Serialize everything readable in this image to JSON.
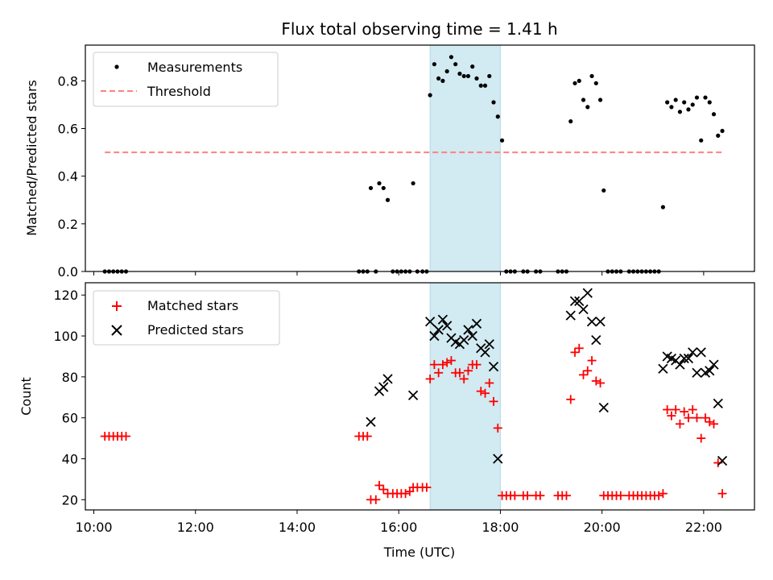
{
  "chart_data": [
    {
      "type": "scatter",
      "title": "Flux total observing time = 1.41 h",
      "xlabel": "",
      "ylabel": "Matched/Predicted stars",
      "xlim": [
        "09:50",
        "23:00"
      ],
      "ylim": [
        0,
        0.95
      ],
      "yticks": [
        "0.0",
        "0.2",
        "0.4",
        "0.6",
        "0.8"
      ],
      "legend_position": "top-left",
      "highlight_span": [
        "16:37",
        "18:00"
      ],
      "series": [
        {
          "name": "Measurements",
          "marker": "dot",
          "color": "#000000",
          "points": [
            [
              "10:13",
              0
            ],
            [
              "10:18",
              0
            ],
            [
              "10:23",
              0
            ],
            [
              "10:28",
              0
            ],
            [
              "10:33",
              0
            ],
            [
              "10:38",
              0
            ],
            [
              "15:13",
              0
            ],
            [
              "15:18",
              0
            ],
            [
              "15:23",
              0
            ],
            [
              "15:27",
              0.35
            ],
            [
              "15:33",
              0
            ],
            [
              "15:37",
              0.37
            ],
            [
              "15:42",
              0.35
            ],
            [
              "15:47",
              0.3
            ],
            [
              "15:53",
              0
            ],
            [
              "15:58",
              0
            ],
            [
              "16:03",
              0
            ],
            [
              "16:08",
              0
            ],
            [
              "16:13",
              0
            ],
            [
              "16:17",
              0.37
            ],
            [
              "16:22",
              0
            ],
            [
              "16:28",
              0
            ],
            [
              "16:33",
              0
            ],
            [
              "16:37",
              0.74
            ],
            [
              "16:42",
              0.87
            ],
            [
              "16:47",
              0.81
            ],
            [
              "16:52",
              0.8
            ],
            [
              "16:57",
              0.84
            ],
            [
              "17:02",
              0.9
            ],
            [
              "17:07",
              0.87
            ],
            [
              "17:12",
              0.83
            ],
            [
              "17:17",
              0.82
            ],
            [
              "17:22",
              0.82
            ],
            [
              "17:27",
              0.86
            ],
            [
              "17:32",
              0.81
            ],
            [
              "17:37",
              0.78
            ],
            [
              "17:42",
              0.78
            ],
            [
              "17:47",
              0.82
            ],
            [
              "17:52",
              0.71
            ],
            [
              "17:57",
              0.65
            ],
            [
              "18:02",
              0.55
            ],
            [
              "18:07",
              0
            ],
            [
              "18:12",
              0
            ],
            [
              "18:17",
              0
            ],
            [
              "18:27",
              0
            ],
            [
              "18:32",
              0
            ],
            [
              "18:42",
              0
            ],
            [
              "18:47",
              0
            ],
            [
              "19:08",
              0
            ],
            [
              "19:13",
              0
            ],
            [
              "19:18",
              0
            ],
            [
              "19:23",
              0.63
            ],
            [
              "19:28",
              0.79
            ],
            [
              "19:33",
              0.8
            ],
            [
              "19:38",
              0.72
            ],
            [
              "19:43",
              0.69
            ],
            [
              "19:48",
              0.82
            ],
            [
              "19:53",
              0.79
            ],
            [
              "19:58",
              0.72
            ],
            [
              "20:02",
              0.34
            ],
            [
              "20:07",
              0
            ],
            [
              "20:12",
              0
            ],
            [
              "20:17",
              0
            ],
            [
              "20:22",
              0
            ],
            [
              "20:32",
              0
            ],
            [
              "20:37",
              0
            ],
            [
              "20:42",
              0
            ],
            [
              "20:47",
              0
            ],
            [
              "20:52",
              0
            ],
            [
              "20:57",
              0
            ],
            [
              "21:02",
              0
            ],
            [
              "21:07",
              0
            ],
            [
              "21:12",
              0.27
            ],
            [
              "21:17",
              0.71
            ],
            [
              "21:22",
              0.69
            ],
            [
              "21:27",
              0.72
            ],
            [
              "21:32",
              0.67
            ],
            [
              "21:37",
              0.71
            ],
            [
              "21:42",
              0.68
            ],
            [
              "21:47",
              0.7
            ],
            [
              "21:52",
              0.73
            ],
            [
              "21:57",
              0.55
            ],
            [
              "22:02",
              0.73
            ],
            [
              "22:07",
              0.71
            ],
            [
              "22:12",
              0.66
            ],
            [
              "22:17",
              0.57
            ],
            [
              "22:22",
              0.59
            ]
          ]
        },
        {
          "name": "Threshold",
          "marker": "dashed-line",
          "color": "#ff8080",
          "points": [
            [
              "10:13",
              0.5
            ],
            [
              "22:22",
              0.5
            ]
          ]
        }
      ]
    },
    {
      "type": "scatter",
      "title": "",
      "xlabel": "Time (UTC)",
      "ylabel": "Count",
      "xlim": [
        "09:50",
        "23:00"
      ],
      "ylim": [
        15,
        126
      ],
      "yticks": [
        "20",
        "40",
        "60",
        "80",
        "100",
        "120"
      ],
      "xticks": [
        "10:00",
        "12:00",
        "14:00",
        "16:00",
        "18:00",
        "20:00",
        "22:00"
      ],
      "legend_position": "top-left",
      "highlight_span": [
        "16:37",
        "18:00"
      ],
      "series": [
        {
          "name": "Matched stars",
          "marker": "plus",
          "color": "#ff0000",
          "points": [
            [
              "10:13",
              51
            ],
            [
              "10:18",
              51
            ],
            [
              "10:23",
              51
            ],
            [
              "10:28",
              51
            ],
            [
              "10:33",
              51
            ],
            [
              "10:38",
              51
            ],
            [
              "15:13",
              51
            ],
            [
              "15:18",
              51
            ],
            [
              "15:23",
              51
            ],
            [
              "15:27",
              20
            ],
            [
              "15:33",
              20
            ],
            [
              "15:37",
              27
            ],
            [
              "15:42",
              25
            ],
            [
              "15:47",
              23
            ],
            [
              "15:53",
              23
            ],
            [
              "15:58",
              23
            ],
            [
              "16:03",
              23
            ],
            [
              "16:08",
              23
            ],
            [
              "16:13",
              24
            ],
            [
              "16:17",
              26
            ],
            [
              "16:22",
              26
            ],
            [
              "16:28",
              26
            ],
            [
              "16:33",
              26
            ],
            [
              "16:37",
              79
            ],
            [
              "16:42",
              86
            ],
            [
              "16:47",
              82
            ],
            [
              "16:52",
              86
            ],
            [
              "16:57",
              87
            ],
            [
              "17:02",
              88
            ],
            [
              "17:07",
              82
            ],
            [
              "17:12",
              82
            ],
            [
              "17:17",
              79
            ],
            [
              "17:22",
              83
            ],
            [
              "17:27",
              86
            ],
            [
              "17:32",
              86
            ],
            [
              "17:37",
              73
            ],
            [
              "17:42",
              72
            ],
            [
              "17:47",
              77
            ],
            [
              "17:52",
              68
            ],
            [
              "17:57",
              55
            ],
            [
              "18:02",
              22
            ],
            [
              "18:07",
              22
            ],
            [
              "18:12",
              22
            ],
            [
              "18:17",
              22
            ],
            [
              "18:27",
              22
            ],
            [
              "18:32",
              22
            ],
            [
              "18:42",
              22
            ],
            [
              "18:47",
              22
            ],
            [
              "19:08",
              22
            ],
            [
              "19:13",
              22
            ],
            [
              "19:18",
              22
            ],
            [
              "19:23",
              69
            ],
            [
              "19:28",
              92
            ],
            [
              "19:33",
              94
            ],
            [
              "19:38",
              81
            ],
            [
              "19:43",
              83
            ],
            [
              "19:48",
              88
            ],
            [
              "19:53",
              78
            ],
            [
              "19:58",
              77
            ],
            [
              "20:02",
              22
            ],
            [
              "20:07",
              22
            ],
            [
              "20:12",
              22
            ],
            [
              "20:17",
              22
            ],
            [
              "20:22",
              22
            ],
            [
              "20:32",
              22
            ],
            [
              "20:37",
              22
            ],
            [
              "20:42",
              22
            ],
            [
              "20:47",
              22
            ],
            [
              "20:52",
              22
            ],
            [
              "20:57",
              22
            ],
            [
              "21:02",
              22
            ],
            [
              "21:07",
              22
            ],
            [
              "21:12",
              23
            ],
            [
              "21:17",
              64
            ],
            [
              "21:22",
              61
            ],
            [
              "21:27",
              64
            ],
            [
              "21:32",
              57
            ],
            [
              "21:37",
              63
            ],
            [
              "21:42",
              60
            ],
            [
              "21:47",
              64
            ],
            [
              "21:52",
              60
            ],
            [
              "21:57",
              50
            ],
            [
              "22:02",
              60
            ],
            [
              "22:07",
              58
            ],
            [
              "22:12",
              57
            ],
            [
              "22:17",
              38
            ],
            [
              "22:22",
              23
            ]
          ]
        },
        {
          "name": "Predicted stars",
          "marker": "x",
          "color": "#000000",
          "points": [
            [
              "15:27",
              58
            ],
            [
              "15:37",
              73
            ],
            [
              "15:42",
              75
            ],
            [
              "15:47",
              79
            ],
            [
              "16:17",
              71
            ],
            [
              "16:37",
              107
            ],
            [
              "16:42",
              100
            ],
            [
              "16:47",
              103
            ],
            [
              "16:52",
              108
            ],
            [
              "16:57",
              105
            ],
            [
              "17:02",
              99
            ],
            [
              "17:07",
              97
            ],
            [
              "17:12",
              96
            ],
            [
              "17:17",
              98
            ],
            [
              "17:22",
              103
            ],
            [
              "17:27",
              100
            ],
            [
              "17:32",
              106
            ],
            [
              "17:37",
              94
            ],
            [
              "17:42",
              92
            ],
            [
              "17:47",
              96
            ],
            [
              "17:52",
              85
            ],
            [
              "17:57",
              40
            ],
            [
              "19:23",
              110
            ],
            [
              "19:28",
              117
            ],
            [
              "19:33",
              117
            ],
            [
              "19:38",
              113
            ],
            [
              "19:43",
              121
            ],
            [
              "19:48",
              107
            ],
            [
              "19:53",
              98
            ],
            [
              "19:58",
              107
            ],
            [
              "20:02",
              65
            ],
            [
              "21:12",
              84
            ],
            [
              "21:17",
              90
            ],
            [
              "21:22",
              89
            ],
            [
              "21:27",
              88
            ],
            [
              "21:32",
              86
            ],
            [
              "21:37",
              89
            ],
            [
              "21:42",
              89
            ],
            [
              "21:47",
              92
            ],
            [
              "21:52",
              82
            ],
            [
              "21:57",
              92
            ],
            [
              "22:02",
              82
            ],
            [
              "22:07",
              83
            ],
            [
              "22:12",
              86
            ],
            [
              "22:17",
              67
            ],
            [
              "22:22",
              39
            ]
          ]
        }
      ]
    }
  ]
}
